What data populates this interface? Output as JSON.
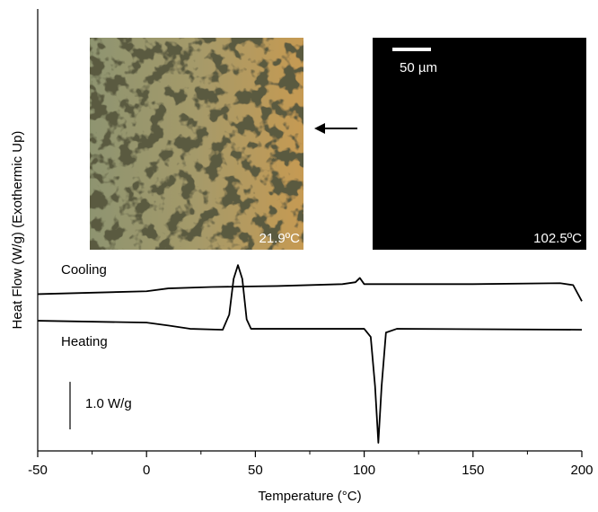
{
  "chart_data": {
    "type": "line",
    "x_label": "Temperature (°C)",
    "y_label": "Heat Flow (W/g) (Exothermic Up)",
    "xlim": [
      -50,
      200
    ],
    "xticks": [
      -50,
      0,
      50,
      100,
      150,
      200
    ],
    "xminorticks": [
      -25,
      25,
      75,
      125,
      175
    ],
    "ylim": [
      0,
      9.3
    ],
    "series": [
      {
        "name": "Cooling",
        "color": "#000000",
        "x": [
          -50,
          0,
          10,
          30,
          60,
          90,
          96,
          98,
          100,
          150,
          190,
          196,
          200
        ],
        "values": [
          3.3,
          3.36,
          3.42,
          3.45,
          3.47,
          3.51,
          3.55,
          3.64,
          3.51,
          3.51,
          3.53,
          3.49,
          3.15
        ]
      },
      {
        "name": "Heating",
        "color": "#000000",
        "x": [
          -50,
          0,
          10,
          20,
          35,
          38,
          40,
          42,
          44,
          46,
          48,
          80,
          100,
          103,
          105,
          106.5,
          108,
          110,
          115,
          200
        ],
        "values": [
          2.74,
          2.7,
          2.64,
          2.57,
          2.55,
          2.87,
          3.62,
          3.91,
          3.62,
          2.77,
          2.57,
          2.57,
          2.57,
          2.4,
          1.36,
          0.17,
          1.36,
          2.49,
          2.57,
          2.55
        ]
      }
    ],
    "scale_bar": {
      "label": "1.0 W/g",
      "value": 1.0
    },
    "insets": [
      {
        "label": "21.9ºC"
      },
      {
        "label": "102.5ºC",
        "scale_label": "50 µm"
      }
    ]
  }
}
